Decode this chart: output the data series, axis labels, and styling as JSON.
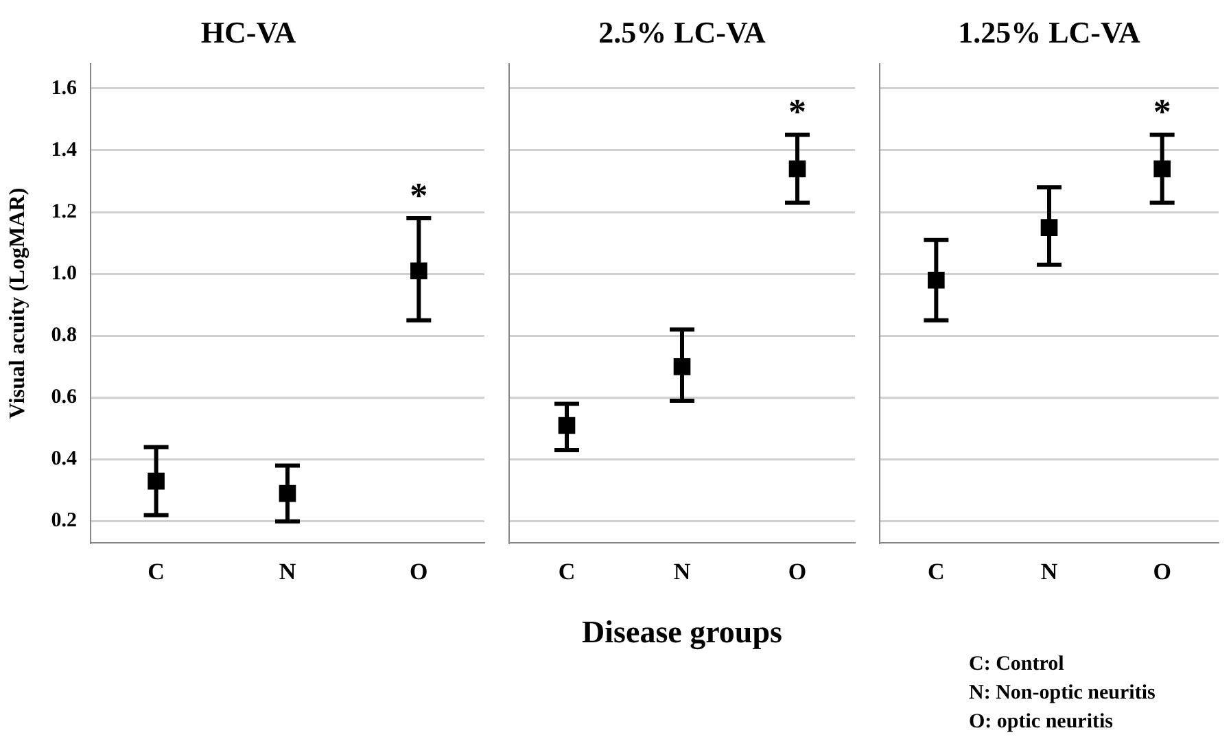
{
  "chart_data": [
    {
      "type": "scatter",
      "title": "HC-VA",
      "ylabel": "Visual acuity (LogMAR)",
      "categories": [
        "C",
        "N",
        "O"
      ],
      "series": [
        {
          "color": "#000000",
          "values": [
            0.33,
            0.29,
            1.01
          ],
          "errors": [
            [
              0.22,
              0.44
            ],
            [
              0.2,
              0.38
            ],
            [
              0.85,
              1.18
            ]
          ]
        }
      ],
      "ylim": [
        0.13,
        1.68
      ],
      "yticks": [
        {
          "value": 0.2,
          "label": "0.2"
        },
        {
          "value": 0.4,
          "label": "0.4"
        },
        {
          "value": 0.6,
          "label": "0.6"
        },
        {
          "value": 0.8,
          "label": "0.8"
        },
        {
          "value": 1.0,
          "label": "1.0"
        },
        {
          "value": 1.2,
          "label": "1.2"
        },
        {
          "value": 1.4,
          "label": "1.4"
        },
        {
          "value": 1.6,
          "label": "1.6"
        }
      ],
      "grid": "y",
      "marker": "square",
      "annotations": [
        "*"
      ]
    },
    {
      "type": "scatter",
      "title": "2.5% LC-VA",
      "xlabel": "Disease groups",
      "categories": [
        "C",
        "N",
        "O"
      ],
      "series": [
        {
          "color": "#000000",
          "values": [
            0.51,
            0.7,
            1.34
          ],
          "errors": [
            [
              0.43,
              0.58
            ],
            [
              0.59,
              0.82
            ],
            [
              1.23,
              1.45
            ]
          ]
        }
      ],
      "ylim": [
        0.13,
        1.68
      ],
      "yticks": [
        0.2,
        0.4,
        0.6,
        0.8,
        1.0,
        1.2,
        1.4,
        1.6
      ],
      "tick_labels": "x",
      "grid": "y",
      "marker": "square",
      "annotations": [
        "*"
      ]
    },
    {
      "type": "scatter",
      "title": "1.25% LC-VA",
      "categories": [
        "C",
        "N",
        "O"
      ],
      "series": [
        {
          "color": "#000000",
          "values": [
            0.98,
            1.15,
            1.34
          ],
          "errors": [
            [
              0.85,
              1.11
            ],
            [
              1.03,
              1.28
            ],
            [
              1.23,
              1.45
            ]
          ]
        }
      ],
      "ylim": [
        0.13,
        1.68
      ],
      "yticks": [
        0.2,
        0.4,
        0.6,
        0.8,
        1.0,
        1.2,
        1.4,
        1.6
      ],
      "tick_labels": "x",
      "grid": "y",
      "marker": "square",
      "annotations": [
        "*",
        "C: Control",
        "N: Non-optic neuritis",
        "O: optic neuritis"
      ]
    }
  ]
}
